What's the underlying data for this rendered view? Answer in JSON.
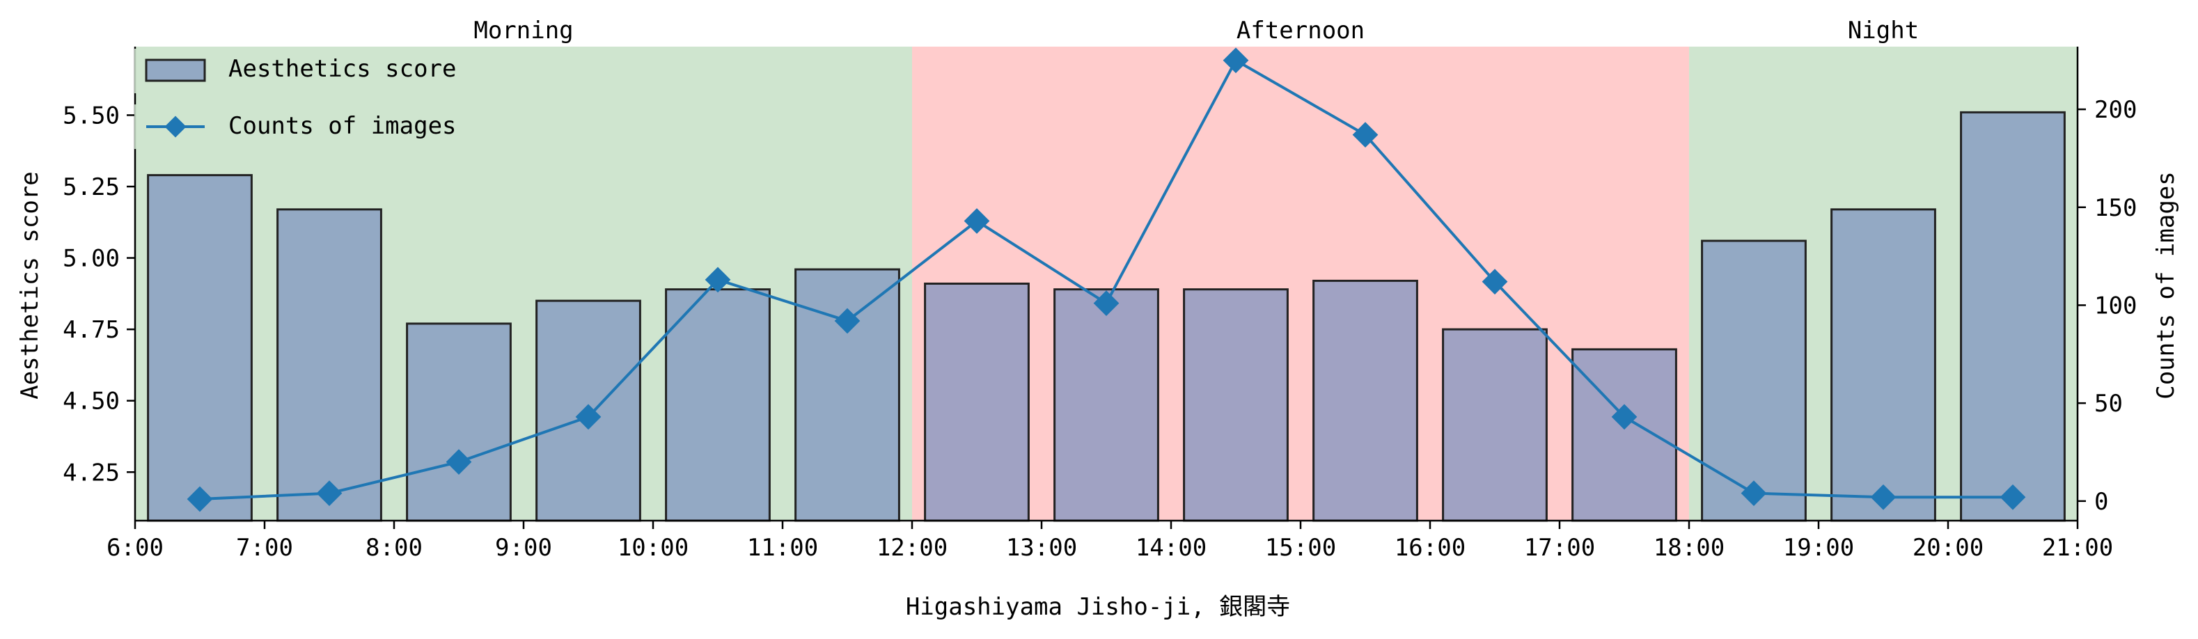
{
  "chart_data": {
    "type": "bar",
    "title": "",
    "xlabel": "Higashiyama Jisho-ji, 銀閣寺",
    "ylabel": "Aesthetics score",
    "y2label": "Counts of images",
    "x_ticks": [
      "6:00",
      "7:00",
      "8:00",
      "9:00",
      "10:00",
      "11:00",
      "12:00",
      "13:00",
      "14:00",
      "15:00",
      "16:00",
      "17:00",
      "18:00",
      "19:00",
      "20:00",
      "21:00"
    ],
    "xlim": [
      6,
      21
    ],
    "ylim": [
      4.08,
      5.74
    ],
    "y_ticks": [
      "4.25",
      "4.50",
      "4.75",
      "5.00",
      "5.25",
      "5.50"
    ],
    "y2lim": [
      -10,
      232
    ],
    "y2_ticks": [
      "0",
      "50",
      "100",
      "150",
      "200"
    ],
    "bands": [
      {
        "label": "Morning",
        "start": 6,
        "end": 12,
        "color": "#cfe5cf"
      },
      {
        "label": "Afternoon",
        "start": 12,
        "end": 18,
        "color": "#ffcccc"
      },
      {
        "label": "Night",
        "start": 18,
        "end": 21,
        "color": "#cfe5cf"
      }
    ],
    "series": [
      {
        "name": "Aesthetics score",
        "kind": "bar",
        "axis": "left",
        "color": "#7b91bf",
        "x": [
          6.5,
          7.5,
          8.5,
          9.5,
          10.5,
          11.5,
          12.5,
          13.5,
          14.5,
          15.5,
          16.5,
          17.5,
          18.5,
          19.5,
          20.5
        ],
        "values": [
          5.29,
          5.17,
          4.77,
          4.85,
          4.89,
          4.96,
          4.91,
          4.89,
          4.89,
          4.92,
          4.75,
          4.68,
          5.06,
          5.17,
          5.51
        ]
      },
      {
        "name": "Counts of images",
        "kind": "line",
        "axis": "right",
        "color": "#1f77b4",
        "marker": "diamond",
        "x": [
          6.5,
          7.5,
          8.5,
          9.5,
          10.5,
          11.5,
          12.5,
          13.5,
          14.5,
          15.5,
          16.5,
          17.5,
          18.5,
          19.5,
          20.5
        ],
        "values": [
          1,
          4,
          20,
          43,
          113,
          92,
          143,
          101,
          225,
          187,
          112,
          43,
          4,
          2,
          2
        ]
      }
    ],
    "legend": "top-left",
    "grid": false
  }
}
